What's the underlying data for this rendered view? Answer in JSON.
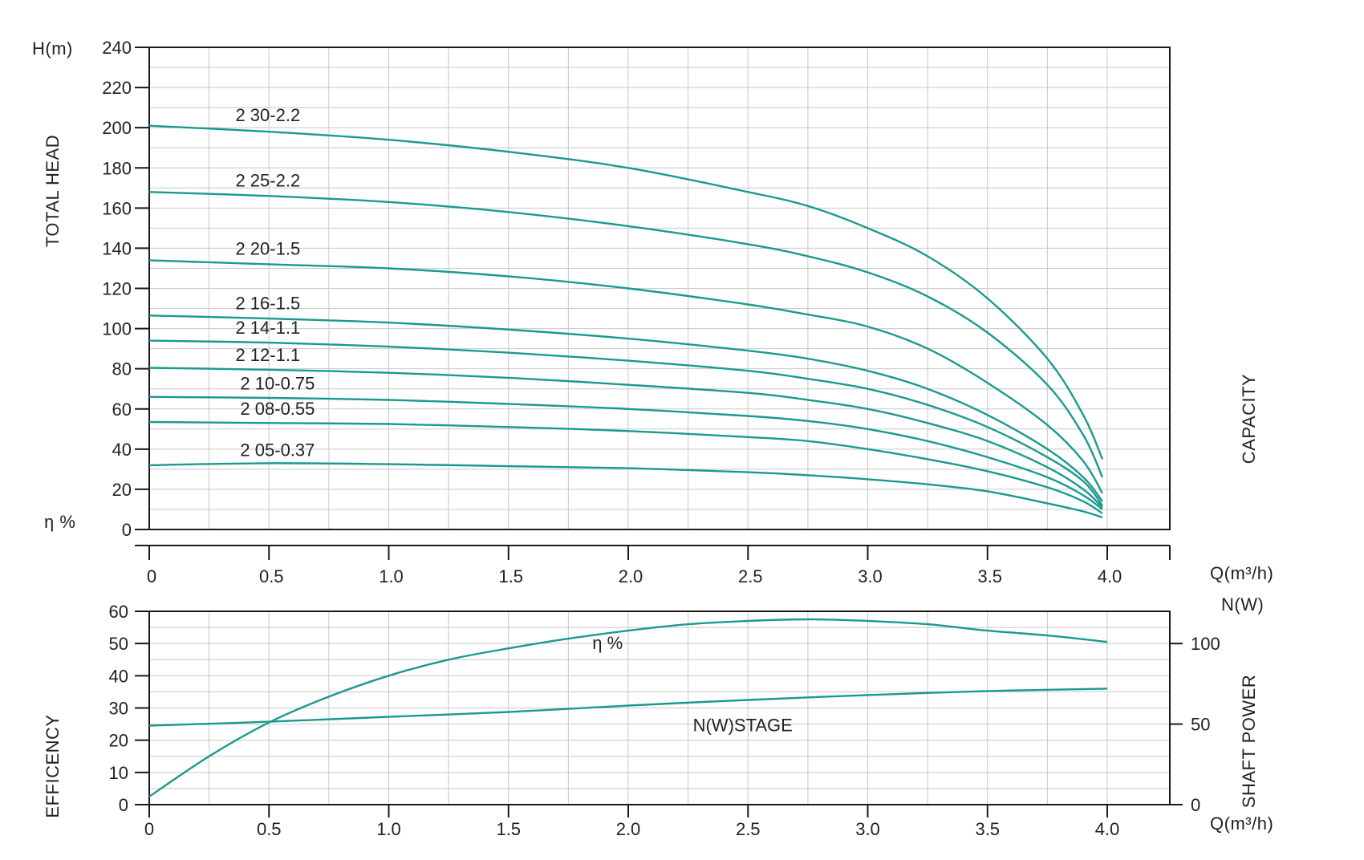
{
  "colors": {
    "curve": "#1a9a8e",
    "grid": "#c8c8c8",
    "axis": "#1a1a1a",
    "text": "#222222"
  },
  "labels": {
    "head_unit": "H(m)",
    "total_head": "TOTAL HEAD",
    "eta_left": "η %",
    "capacity": "CAPACITY",
    "q_unit_main": "Q(m³/h)",
    "n_unit": "N(W)",
    "efficiency": "EFFICENCY",
    "shaft_power": "SHAFT POWER",
    "q_unit_bottom": "Q(m³/h)"
  },
  "chart_data": [
    {
      "id": "head",
      "type": "line",
      "xlabel": "Q(m³/h)",
      "ylabel": "TOTAL HEAD",
      "xlim": [
        0,
        4.25
      ],
      "ylim": [
        0,
        240
      ],
      "xticks": [
        "0",
        "0.5",
        "1.0",
        "1.5",
        "2.0",
        "2.5",
        "3.0",
        "3.5",
        "4.0"
      ],
      "yticks": [
        "0",
        "20",
        "40",
        "60",
        "80",
        "100",
        "120",
        "140",
        "160",
        "180",
        "200",
        "220",
        "240"
      ],
      "grid": true,
      "series": [
        {
          "name": "2 30-2.2",
          "x": [
            0,
            0.5,
            1.0,
            1.5,
            2.0,
            2.5,
            2.75,
            3.0,
            3.25,
            3.5,
            3.75,
            3.9,
            3.98
          ],
          "y": [
            201,
            198,
            194,
            188,
            180,
            168,
            161,
            150,
            136,
            115,
            85,
            57,
            35
          ]
        },
        {
          "name": "2 25-2.2",
          "x": [
            0,
            0.5,
            1.0,
            1.5,
            2.0,
            2.5,
            2.75,
            3.0,
            3.25,
            3.5,
            3.75,
            3.9,
            3.98
          ],
          "y": [
            168,
            166,
            163,
            158,
            151,
            142,
            136,
            128,
            116,
            98,
            72,
            47,
            26
          ]
        },
        {
          "name": "2 20-1.5",
          "x": [
            0,
            0.5,
            1.0,
            1.5,
            2.0,
            2.5,
            2.75,
            3.0,
            3.25,
            3.5,
            3.75,
            3.9,
            3.98
          ],
          "y": [
            134,
            132,
            130,
            126,
            120,
            112,
            107,
            101,
            90,
            73,
            52,
            34,
            18
          ]
        },
        {
          "name": "2 16-1.5",
          "x": [
            0,
            0.5,
            1.0,
            1.5,
            2.0,
            2.5,
            2.75,
            3.0,
            3.25,
            3.5,
            3.75,
            3.9,
            3.98
          ],
          "y": [
            106.5,
            105,
            103,
            99.5,
            95,
            89,
            85,
            79,
            70,
            57,
            40,
            26,
            14
          ]
        },
        {
          "name": "2 14-1.1",
          "x": [
            0,
            0.5,
            1.0,
            1.5,
            2.0,
            2.5,
            2.75,
            3.0,
            3.25,
            3.5,
            3.75,
            3.9,
            3.98
          ],
          "y": [
            94,
            93,
            91,
            88,
            84,
            79,
            75,
            70,
            62,
            51,
            36,
            24,
            12
          ]
        },
        {
          "name": "2 12-1.1",
          "x": [
            0,
            0.5,
            1.0,
            1.5,
            2.0,
            2.5,
            2.75,
            3.0,
            3.25,
            3.5,
            3.75,
            3.9,
            3.98
          ],
          "y": [
            80.5,
            79.5,
            78,
            75.5,
            72,
            68,
            64.5,
            60,
            53,
            44,
            31,
            20,
            11
          ]
        },
        {
          "name": "2 10-0.75",
          "x": [
            0,
            0.5,
            1.0,
            1.5,
            2.0,
            2.5,
            2.75,
            3.0,
            3.25,
            3.5,
            3.75,
            3.9,
            3.98
          ],
          "y": [
            66,
            65.5,
            64.5,
            62.5,
            60,
            56.5,
            54,
            50,
            44,
            36,
            26,
            17,
            10
          ]
        },
        {
          "name": "2 08-0.55",
          "x": [
            0,
            0.5,
            1.0,
            1.5,
            2.0,
            2.5,
            2.75,
            3.0,
            3.25,
            3.5,
            3.75,
            3.9,
            3.98
          ],
          "y": [
            53.5,
            53,
            52.5,
            51,
            49,
            46,
            44,
            40,
            35,
            29,
            21,
            14,
            8
          ]
        },
        {
          "name": "2 05-0.37",
          "x": [
            0,
            0.5,
            1.0,
            1.5,
            2.0,
            2.5,
            2.75,
            3.0,
            3.25,
            3.5,
            3.75,
            3.9,
            3.98
          ],
          "y": [
            32,
            33,
            32.5,
            31.5,
            30.5,
            28.5,
            27,
            25,
            22.5,
            19,
            13,
            9,
            6
          ]
        }
      ]
    },
    {
      "id": "efficiency_power",
      "type": "line",
      "xlabel": "Q(m³/h)",
      "ylabel": "EFFICENCY",
      "y2label": "SHAFT POWER",
      "xlim": [
        0,
        4.25
      ],
      "ylim": [
        0,
        60
      ],
      "y2lim": [
        0,
        120
      ],
      "xticks": [
        "0",
        "0.5",
        "1.0",
        "1.5",
        "2.0",
        "2.5",
        "3.0",
        "3.5",
        "4.0"
      ],
      "yticks": [
        "0",
        "10",
        "20",
        "30",
        "40",
        "50",
        "60"
      ],
      "y2ticks": [
        {
          "value": 0,
          "label": "0"
        },
        {
          "value": 50,
          "label": "50"
        },
        {
          "value": 100,
          "label": "100"
        }
      ],
      "grid": true,
      "series": [
        {
          "name": "η %",
          "axis": "left",
          "x": [
            0,
            0.25,
            0.5,
            0.75,
            1.0,
            1.25,
            1.5,
            1.75,
            2.0,
            2.25,
            2.5,
            2.75,
            3.0,
            3.25,
            3.5,
            3.75,
            4.0
          ],
          "y": [
            2.5,
            15,
            25.5,
            33.5,
            40,
            45,
            48.5,
            51.5,
            54,
            56,
            57,
            57.5,
            57,
            56,
            54,
            52.5,
            50.5
          ]
        },
        {
          "name": "N(W)STAGE",
          "axis": "right",
          "x": [
            0,
            0.5,
            1.0,
            1.5,
            2.0,
            2.5,
            3.0,
            3.5,
            4.0
          ],
          "y": [
            49,
            51.5,
            54.5,
            57.5,
            61.5,
            65,
            68,
            70.5,
            72
          ]
        }
      ]
    }
  ]
}
